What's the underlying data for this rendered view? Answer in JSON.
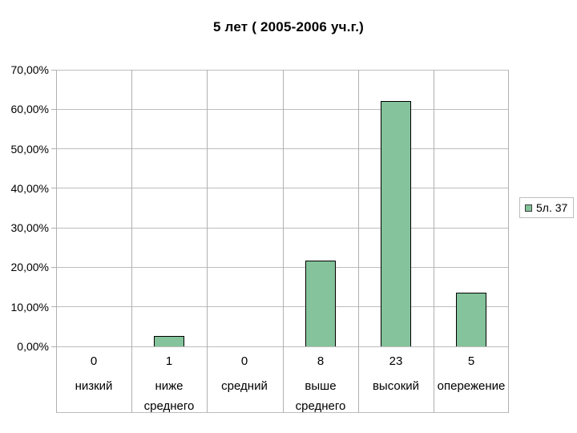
{
  "chart_data": {
    "type": "bar",
    "title": "5 лет ( 2005-2006 уч.г.)",
    "categories": [
      "низкий",
      "ниже среднего",
      "средний",
      "выше среднего",
      "высокий",
      "опережение"
    ],
    "category_counts": [
      "0",
      "1",
      "0",
      "8",
      "23",
      "5"
    ],
    "series": [
      {
        "name": "5л. 37",
        "values_pct": [
          0,
          2.7,
          0,
          21.62,
          62.16,
          13.51
        ]
      }
    ],
    "ylabel": "",
    "xlabel": "",
    "ylim": [
      0,
      70
    ],
    "y_tick_step": 10,
    "y_tick_labels": [
      "0,00%",
      "10,00%",
      "20,00%",
      "30,00%",
      "40,00%",
      "50,00%",
      "60,00%",
      "70,00%"
    ],
    "grid": true,
    "legend_position": "right",
    "colors": {
      "bar_fill": "#84c39b",
      "bar_border": "#000000",
      "gridline": "#bdbdbd",
      "text": "#000000",
      "background": "#ffffff"
    }
  },
  "legend": {
    "label": "5л. 37"
  }
}
